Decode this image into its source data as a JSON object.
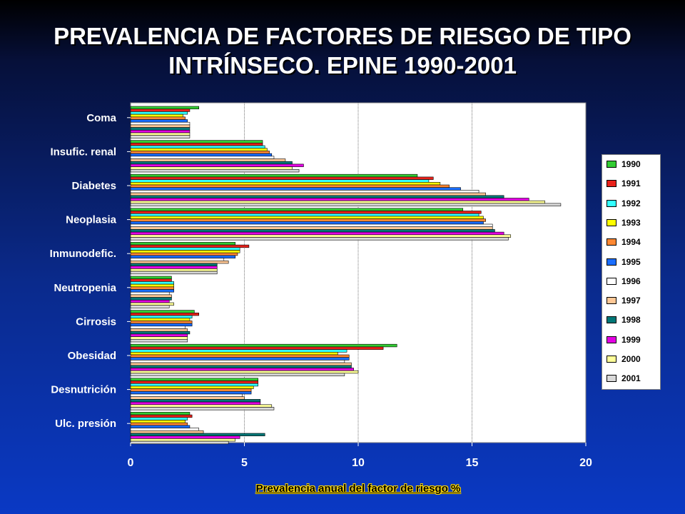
{
  "title_lines": [
    "PREVALENCIA DE FACTORES DE RIESGO DE TIPO",
    "INTRÍNSECO. EPINE 1990-2001"
  ],
  "chart_data": {
    "type": "bar",
    "orientation": "horizontal",
    "categories": [
      "Coma",
      "Insufic. renal",
      "Diabetes",
      "Neoplasia",
      "Inmunodefic.",
      "Neutropenia",
      "Cirrosis",
      "Obesidad",
      "Desnutrición",
      "Ulc. presión"
    ],
    "xlabel": "Prevalencia anual del factor de riesgo %",
    "ylabel": "",
    "xlim": [
      0,
      20
    ],
    "xticks": [
      0,
      5,
      10,
      15,
      20
    ],
    "grid": "vertical dotted",
    "legend_position": "right",
    "series": [
      {
        "name": "1990",
        "color": "#33cc33",
        "values": [
          3.0,
          5.8,
          12.6,
          14.6,
          4.6,
          1.8,
          2.8,
          11.7,
          5.6,
          2.6
        ]
      },
      {
        "name": "1991",
        "color": "#e8221b",
        "values": [
          2.6,
          5.8,
          13.3,
          15.4,
          5.2,
          1.8,
          3.0,
          11.1,
          5.6,
          2.7
        ]
      },
      {
        "name": "1992",
        "color": "#33ffff",
        "values": [
          2.5,
          5.9,
          13.1,
          15.3,
          4.8,
          1.9,
          2.7,
          9.5,
          5.6,
          2.5
        ]
      },
      {
        "name": "1993",
        "color": "#ffff00",
        "values": [
          2.3,
          6.0,
          13.6,
          15.5,
          4.8,
          1.9,
          2.6,
          9.1,
          5.4,
          2.4
        ]
      },
      {
        "name": "1994",
        "color": "#ff8833",
        "values": [
          2.4,
          6.1,
          14.0,
          15.6,
          4.7,
          1.9,
          2.7,
          9.6,
          5.3,
          2.5
        ]
      },
      {
        "name": "1995",
        "color": "#1a6eff",
        "values": [
          2.5,
          6.2,
          14.5,
          15.5,
          4.6,
          1.9,
          2.7,
          9.6,
          5.3,
          2.6
        ]
      },
      {
        "name": "1996",
        "color": "#ffffff",
        "values": [
          2.6,
          6.3,
          15.3,
          15.9,
          4.1,
          1.7,
          2.4,
          9.4,
          4.9,
          3.0
        ]
      },
      {
        "name": "1997",
        "color": "#ffc896",
        "values": [
          2.6,
          6.8,
          15.6,
          15.9,
          4.3,
          1.8,
          2.5,
          9.7,
          5.0,
          3.2
        ]
      },
      {
        "name": "1998",
        "color": "#007777",
        "values": [
          2.6,
          7.1,
          16.4,
          16.0,
          3.8,
          1.8,
          2.6,
          9.7,
          5.7,
          5.9
        ]
      },
      {
        "name": "1999",
        "color": "#e400e4",
        "values": [
          2.6,
          7.6,
          17.5,
          16.4,
          3.8,
          1.7,
          2.5,
          9.8,
          5.7,
          4.8
        ]
      },
      {
        "name": "2000",
        "color": "#ffff99",
        "values": [
          2.6,
          7.1,
          18.2,
          16.7,
          3.8,
          1.9,
          2.5,
          10.0,
          6.2,
          4.6
        ]
      },
      {
        "name": "2001",
        "color": "#d9d9d9",
        "values": [
          2.6,
          7.4,
          18.9,
          16.6,
          3.8,
          1.7,
          2.5,
          9.4,
          6.3,
          4.3
        ]
      }
    ]
  }
}
